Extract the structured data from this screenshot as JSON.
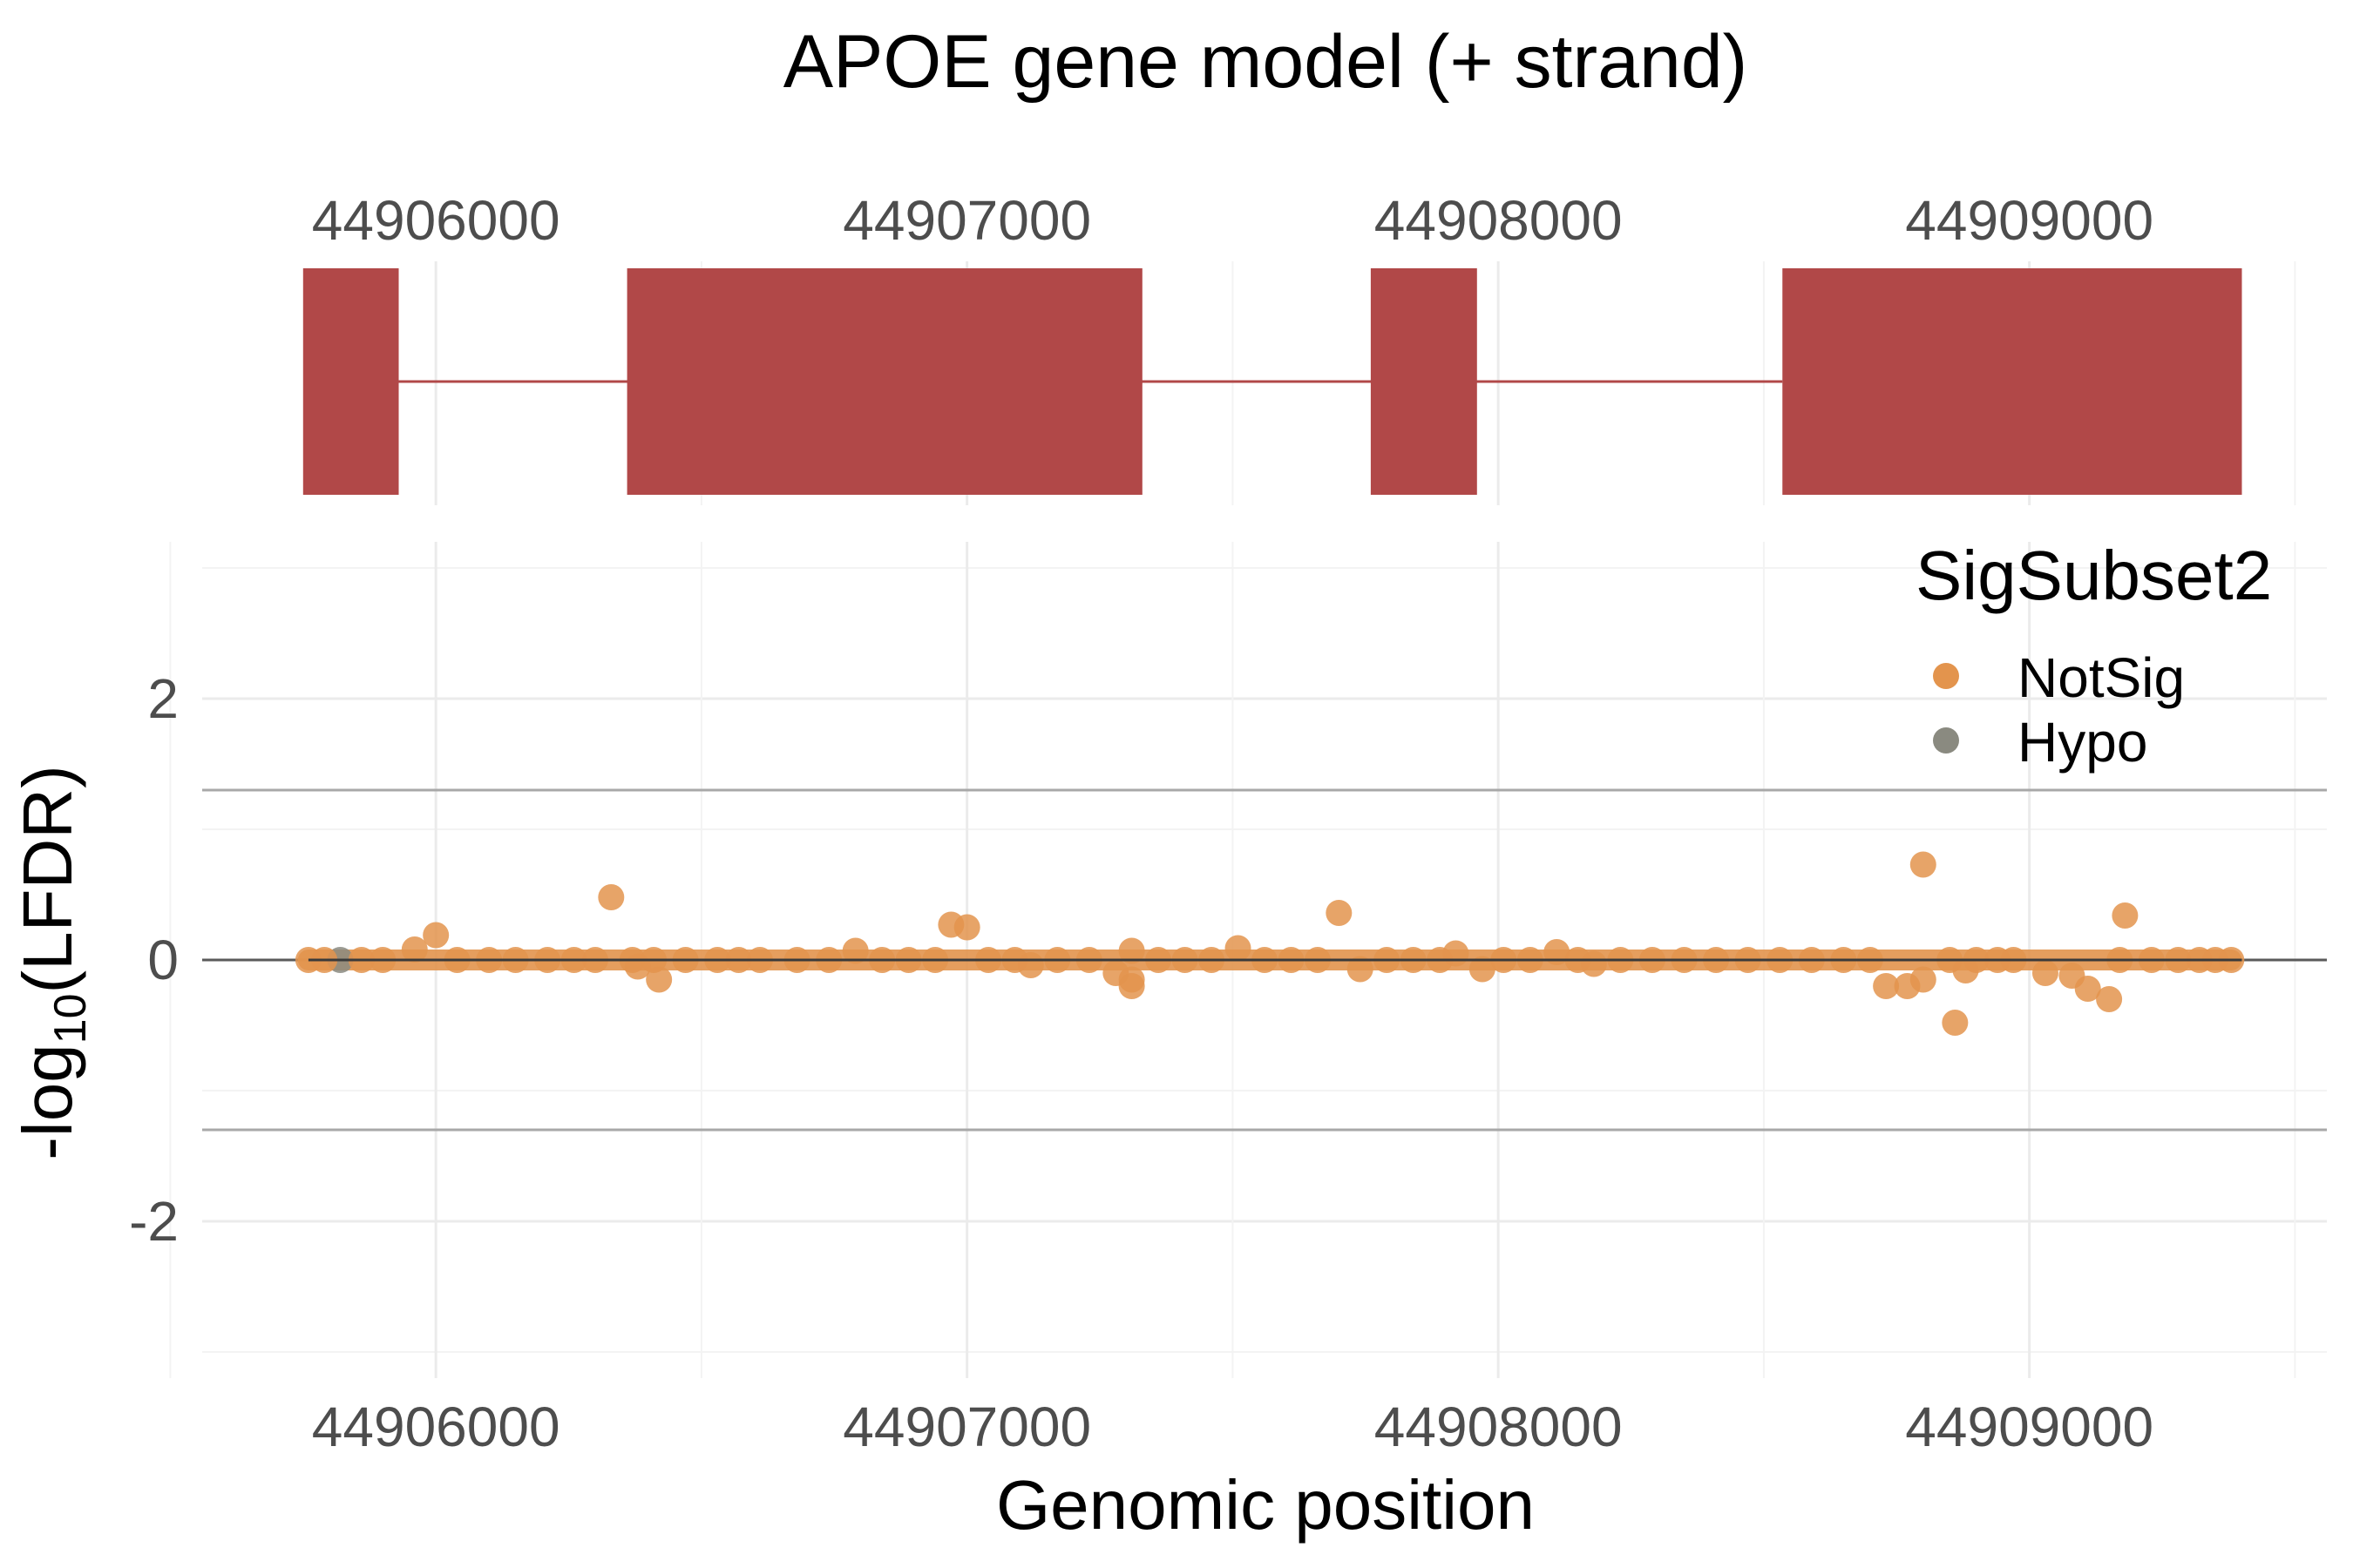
{
  "chart_data": [
    {
      "type": "gene-model",
      "title": "APOE gene model (+ strand)",
      "strand": "+",
      "xlim": [
        44905560,
        44909560
      ],
      "x_ticks": [
        44906000,
        44907000,
        44908000,
        44909000
      ],
      "x_tick_labels": [
        "44906000",
        "44907000",
        "44908000",
        "44909000"
      ],
      "exons": [
        {
          "start": 44905750,
          "end": 44905930
        },
        {
          "start": 44906360,
          "end": 44907330
        },
        {
          "start": 44907760,
          "end": 44907960
        },
        {
          "start": 44908535,
          "end": 44909400
        }
      ],
      "intron_line": {
        "start": 44905930,
        "end": 44908535
      },
      "exon_color": "#b14848"
    },
    {
      "type": "scatter",
      "xlabel": "Genomic position",
      "ylabel": "-log10(LFDR)",
      "ylabel_parts": {
        "prefix": "-log",
        "subscript": "10",
        "suffix": "(LFDR)"
      },
      "xlim": [
        44905560,
        44909560
      ],
      "ylim": [
        -3.2,
        3.2
      ],
      "x_ticks": [
        44906000,
        44907000,
        44908000,
        44909000
      ],
      "x_tick_labels": [
        "44906000",
        "44907000",
        "44908000",
        "44909000"
      ],
      "y_ticks": [
        -2,
        0,
        2
      ],
      "y_tick_labels": [
        "-2",
        "0",
        "2"
      ],
      "hlines": [
        1.3,
        0,
        -1.3
      ],
      "grid": true,
      "legend": {
        "title": "SigSubset2",
        "position": "top-right",
        "entries": [
          {
            "label": "NotSig",
            "color": "#e3944d"
          },
          {
            "label": "Hypo",
            "color": "#8a8a80"
          }
        ]
      },
      "series": [
        {
          "name": "NotSig",
          "color": "#e3944d",
          "points": [
            [
              44905760,
              0
            ],
            [
              44905790,
              0
            ],
            [
              44905860,
              0
            ],
            [
              44905900,
              0
            ],
            [
              44905960,
              0.08
            ],
            [
              44906000,
              0.19
            ],
            [
              44906040,
              0
            ],
            [
              44906100,
              0
            ],
            [
              44906150,
              0
            ],
            [
              44906210,
              0
            ],
            [
              44906260,
              0
            ],
            [
              44906300,
              0
            ],
            [
              44906330,
              0.48
            ],
            [
              44906370,
              0
            ],
            [
              44906380,
              -0.05
            ],
            [
              44906410,
              0
            ],
            [
              44906420,
              -0.15
            ],
            [
              44906470,
              0
            ],
            [
              44906530,
              0
            ],
            [
              44906570,
              0
            ],
            [
              44906610,
              0
            ],
            [
              44906680,
              0
            ],
            [
              44906740,
              0
            ],
            [
              44906790,
              0.07
            ],
            [
              44906840,
              0
            ],
            [
              44906890,
              0
            ],
            [
              44906940,
              0
            ],
            [
              44906970,
              0.27
            ],
            [
              44907000,
              0.25
            ],
            [
              44907040,
              0
            ],
            [
              44907090,
              0
            ],
            [
              44907120,
              -0.04
            ],
            [
              44907170,
              0
            ],
            [
              44907230,
              0
            ],
            [
              44907280,
              -0.1
            ],
            [
              44907310,
              0.07
            ],
            [
              44907310,
              -0.15
            ],
            [
              44907310,
              -0.2
            ],
            [
              44907360,
              0
            ],
            [
              44907410,
              0
            ],
            [
              44907460,
              0
            ],
            [
              44907510,
              0.09
            ],
            [
              44907560,
              0
            ],
            [
              44907610,
              0
            ],
            [
              44907660,
              0
            ],
            [
              44907700,
              0.36
            ],
            [
              44907740,
              -0.07
            ],
            [
              44907790,
              0
            ],
            [
              44907840,
              0
            ],
            [
              44907890,
              0
            ],
            [
              44907920,
              0.05
            ],
            [
              44907970,
              -0.07
            ],
            [
              44908010,
              0
            ],
            [
              44908060,
              0
            ],
            [
              44908110,
              0.06
            ],
            [
              44908150,
              0
            ],
            [
              44908180,
              -0.03
            ],
            [
              44908230,
              0
            ],
            [
              44908290,
              0
            ],
            [
              44908350,
              0
            ],
            [
              44908410,
              0
            ],
            [
              44908470,
              0
            ],
            [
              44908530,
              0
            ],
            [
              44908590,
              0
            ],
            [
              44908650,
              0
            ],
            [
              44908700,
              0
            ],
            [
              44908730,
              -0.2
            ],
            [
              44908770,
              -0.2
            ],
            [
              44908800,
              -0.15
            ],
            [
              44908800,
              0.73
            ],
            [
              44908850,
              0
            ],
            [
              44908860,
              -0.48
            ],
            [
              44908880,
              -0.08
            ],
            [
              44908900,
              0
            ],
            [
              44908940,
              0
            ],
            [
              44908970,
              0
            ],
            [
              44909030,
              -0.1
            ],
            [
              44909080,
              -0.12
            ],
            [
              44909110,
              -0.22
            ],
            [
              44909150,
              -0.3
            ],
            [
              44909170,
              0
            ],
            [
              44909180,
              0.34
            ],
            [
              44909230,
              0
            ],
            [
              44909280,
              0
            ],
            [
              44909320,
              0
            ],
            [
              44909350,
              0
            ],
            [
              44909380,
              0
            ]
          ]
        },
        {
          "name": "Hypo",
          "color": "#8a8a80",
          "points": [
            [
              44905820,
              0
            ]
          ]
        }
      ]
    }
  ]
}
